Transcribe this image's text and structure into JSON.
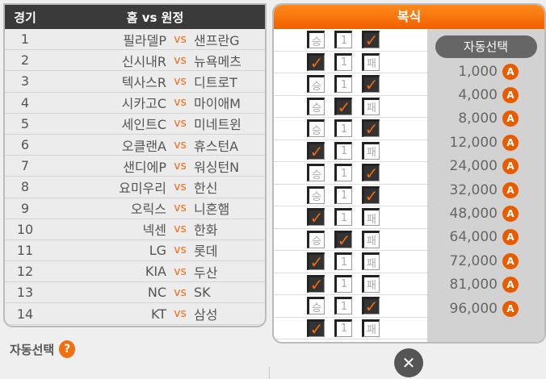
{
  "left": {
    "header_game": "경기",
    "header_match": "홈 vs 원정",
    "vs": "vs",
    "games": [
      {
        "no": "1",
        "home": "필라델P",
        "away": "샌프란G"
      },
      {
        "no": "2",
        "home": "신시내R",
        "away": "뉴욕메츠"
      },
      {
        "no": "3",
        "home": "텍사스R",
        "away": "디트로T"
      },
      {
        "no": "4",
        "home": "시카고C",
        "away": "마이애M"
      },
      {
        "no": "5",
        "home": "세인트C",
        "away": "미네트윈"
      },
      {
        "no": "6",
        "home": "오클랜A",
        "away": "휴스턴A"
      },
      {
        "no": "7",
        "home": "샌디에P",
        "away": "워싱턴N"
      },
      {
        "no": "8",
        "home": "요미우리",
        "away": "한신"
      },
      {
        "no": "9",
        "home": "오릭스",
        "away": "니혼햄"
      },
      {
        "no": "10",
        "home": "넥센",
        "away": "한화"
      },
      {
        "no": "11",
        "home": "LG",
        "away": "롯데"
      },
      {
        "no": "12",
        "home": "KIA",
        "away": "두산"
      },
      {
        "no": "13",
        "home": "NC",
        "away": "SK"
      },
      {
        "no": "14",
        "home": "KT",
        "away": "삼성"
      }
    ]
  },
  "right": {
    "title": "복식",
    "labels": {
      "win": "승",
      "draw": "1",
      "lose": "패"
    },
    "picks": [
      "lose",
      "win",
      "lose",
      "draw",
      "lose",
      "win",
      "lose",
      "lose",
      "win",
      "draw",
      "win",
      "win",
      "lose",
      "win"
    ],
    "auto_button": "자동선택",
    "prices": [
      "1,000",
      "4,000",
      "8,000",
      "12,000",
      "24,000",
      "32,000",
      "48,000",
      "64,000",
      "72,000",
      "81,000",
      "96,000"
    ],
    "coin_letter": "A"
  },
  "footer": {
    "auto_label": "자동선택",
    "help": "?",
    "close": "✕"
  },
  "colors": {
    "accent": "#f26a10",
    "header_dark": "#3a3a3a"
  }
}
